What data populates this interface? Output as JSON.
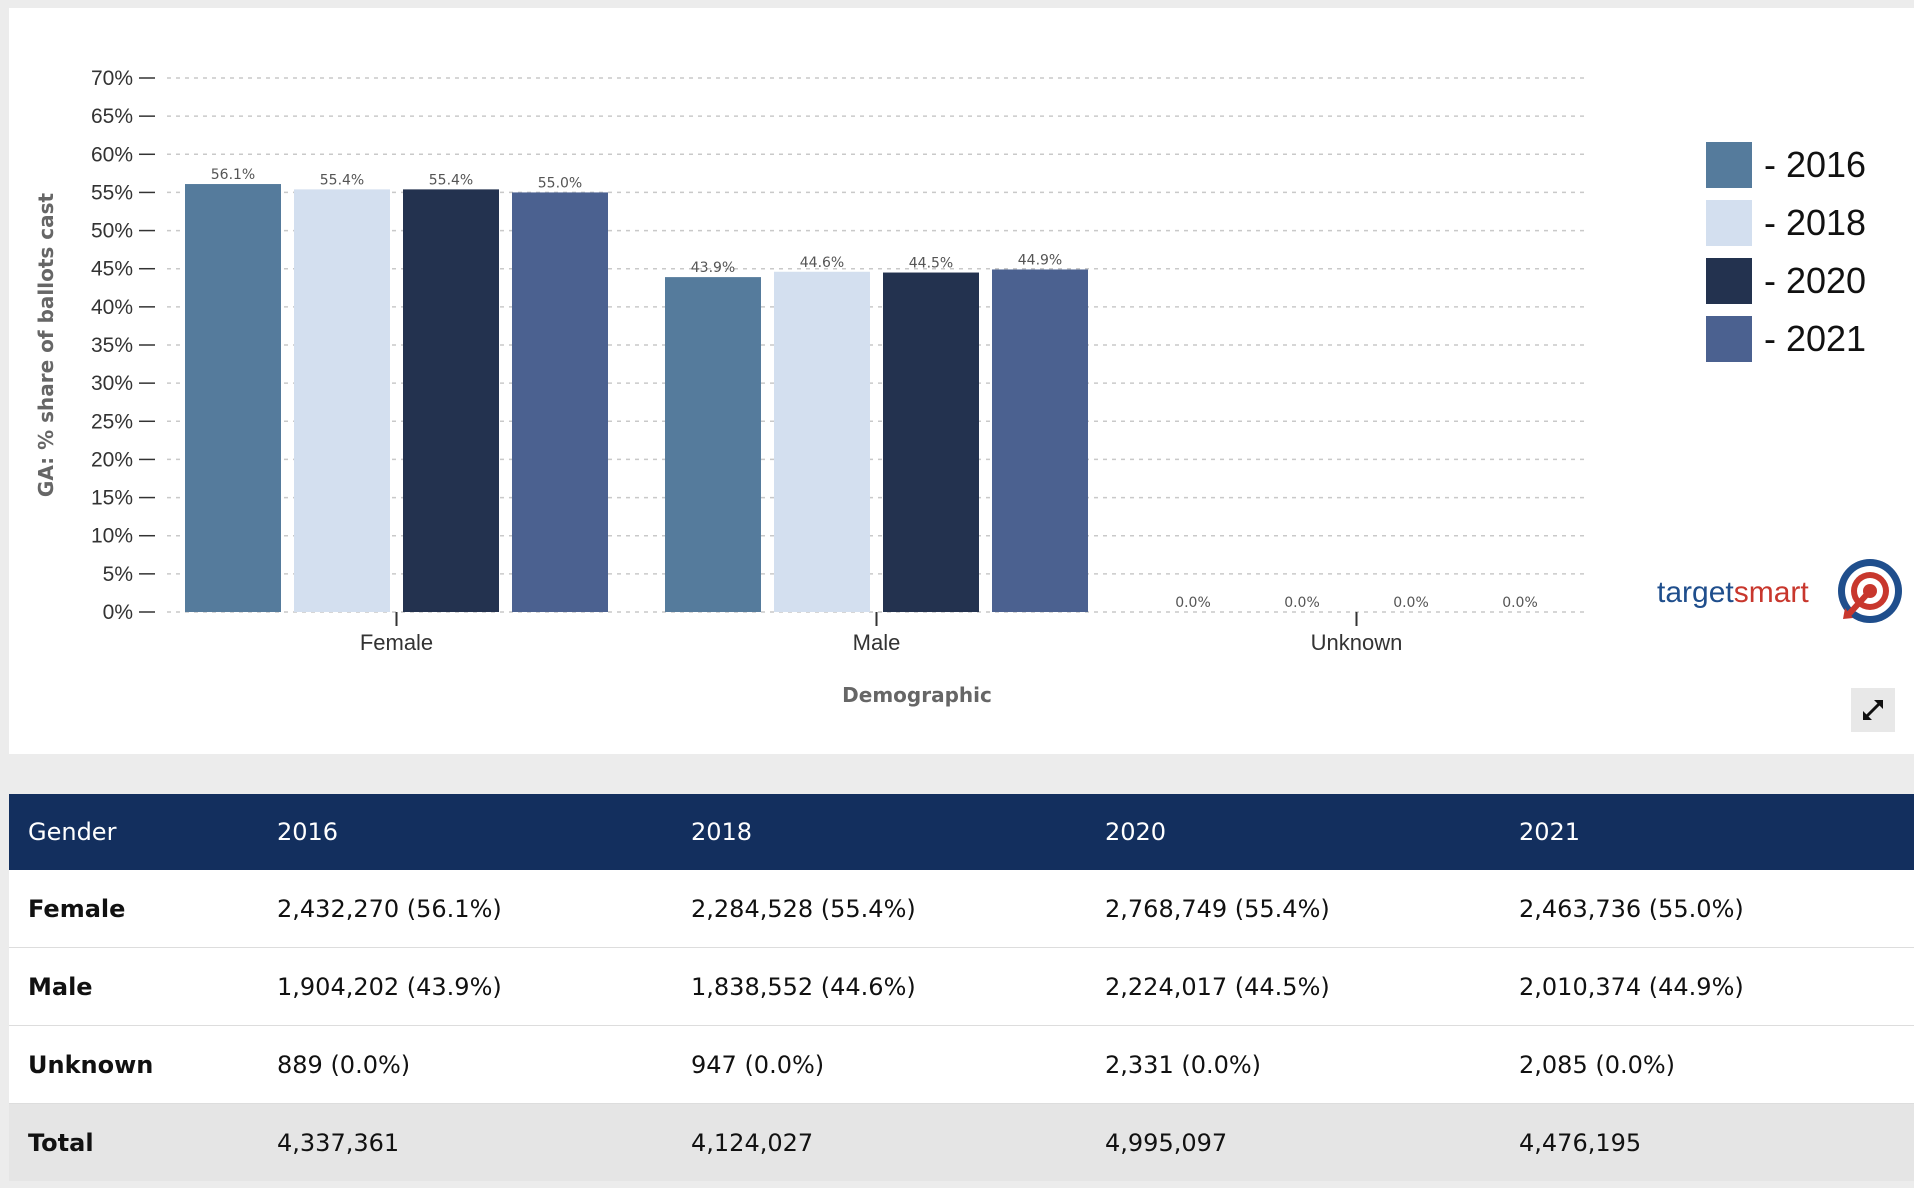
{
  "chart_data": {
    "type": "bar",
    "categories": [
      "Female",
      "Male",
      "Unknown"
    ],
    "series": [
      {
        "name": "2016",
        "values": [
          56.1,
          43.9,
          0.0
        ],
        "color": "#557b9c"
      },
      {
        "name": "2018",
        "values": [
          55.4,
          44.6,
          0.0
        ],
        "color": "#d3dfef"
      },
      {
        "name": "2020",
        "values": [
          55.4,
          44.5,
          0.0
        ],
        "color": "#23324f"
      },
      {
        "name": "2021",
        "values": [
          55.0,
          44.9,
          0.0
        ],
        "color": "#4b6190"
      }
    ],
    "value_labels": [
      [
        "56.1%",
        "43.9%",
        "0.0%"
      ],
      [
        "55.4%",
        "44.6%",
        "0.0%"
      ],
      [
        "55.4%",
        "44.5%",
        "0.0%"
      ],
      [
        "55.0%",
        "44.9%",
        "0.0%"
      ]
    ],
    "xlabel": "Demographic",
    "ylabel": "GA: % share of ballots cast",
    "ylim": [
      0,
      70
    ],
    "y_ticks": [
      {
        "value": 0,
        "label": "0%"
      },
      {
        "value": 5,
        "label": "5%"
      },
      {
        "value": 10,
        "label": "10%"
      },
      {
        "value": 15,
        "label": "15%"
      },
      {
        "value": 20,
        "label": "20%"
      },
      {
        "value": 25,
        "label": "25%"
      },
      {
        "value": 30,
        "label": "30%"
      },
      {
        "value": 35,
        "label": "35%"
      },
      {
        "value": 40,
        "label": "40%"
      },
      {
        "value": 45,
        "label": "45%"
      },
      {
        "value": 50,
        "label": "50%"
      },
      {
        "value": 55,
        "label": "55%"
      },
      {
        "value": 60,
        "label": "60%"
      },
      {
        "value": 65,
        "label": "65%"
      },
      {
        "value": 70,
        "label": "70%"
      }
    ],
    "grid": true,
    "legend": {
      "position": "right",
      "prefix": "- "
    }
  },
  "logo": {
    "text_a": "target",
    "text_b": "smart",
    "color_a": "#1f4e8c",
    "color_b": "#c8372d"
  },
  "table": {
    "headers": [
      "Gender",
      "2016",
      "2018",
      "2020",
      "2021"
    ],
    "rows": [
      [
        "Female",
        "2,432,270 (56.1%)",
        "2,284,528 (55.4%)",
        "2,768,749 (55.4%)",
        "2,463,736 (55.0%)"
      ],
      [
        "Male",
        "1,904,202 (43.9%)",
        "1,838,552 (44.6%)",
        "2,224,017 (44.5%)",
        "2,010,374 (44.9%)"
      ],
      [
        "Unknown",
        "889 (0.0%)",
        "947 (0.0%)",
        "2,331 (0.0%)",
        "2,085 (0.0%)"
      ],
      [
        "Total",
        "4,337,361",
        "4,124,027",
        "4,995,097",
        "4,476,195"
      ]
    ]
  },
  "icons": {
    "expand": "expand-arrows-icon",
    "logo": "target-logo-icon"
  }
}
